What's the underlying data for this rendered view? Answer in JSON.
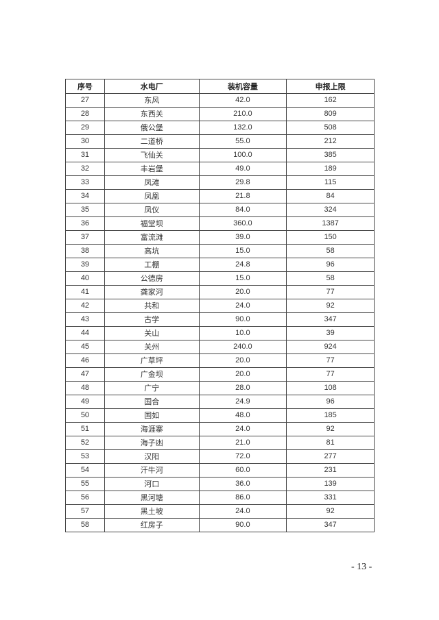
{
  "table": {
    "headers": [
      "序号",
      "水电厂",
      "装机容量",
      "申报上限"
    ],
    "rows": [
      [
        "27",
        "东风",
        "42.0",
        "162"
      ],
      [
        "28",
        "东西关",
        "210.0",
        "809"
      ],
      [
        "29",
        "俄公堡",
        "132.0",
        "508"
      ],
      [
        "30",
        "二道桥",
        "55.0",
        "212"
      ],
      [
        "31",
        "飞仙关",
        "100.0",
        "385"
      ],
      [
        "32",
        "丰岩堡",
        "49.0",
        "189"
      ],
      [
        "33",
        "凤滩",
        "29.8",
        "115"
      ],
      [
        "34",
        "凤凰",
        "21.8",
        "84"
      ],
      [
        "35",
        "凤仪",
        "84.0",
        "324"
      ],
      [
        "36",
        "福堂坝",
        "360.0",
        "1387"
      ],
      [
        "37",
        "富流滩",
        "39.0",
        "150"
      ],
      [
        "38",
        "高坑",
        "15.0",
        "58"
      ],
      [
        "39",
        "工棚",
        "24.8",
        "96"
      ],
      [
        "40",
        "公德房",
        "15.0",
        "58"
      ],
      [
        "41",
        "龚家河",
        "20.0",
        "77"
      ],
      [
        "42",
        "共和",
        "24.0",
        "92"
      ],
      [
        "43",
        "古学",
        "90.0",
        "347"
      ],
      [
        "44",
        "关山",
        "10.0",
        "39"
      ],
      [
        "45",
        "关州",
        "240.0",
        "924"
      ],
      [
        "46",
        "广草坪",
        "20.0",
        "77"
      ],
      [
        "47",
        "广金坝",
        "20.0",
        "77"
      ],
      [
        "48",
        "广宁",
        "28.0",
        "108"
      ],
      [
        "49",
        "国合",
        "24.9",
        "96"
      ],
      [
        "50",
        "国如",
        "48.0",
        "185"
      ],
      [
        "51",
        "海涯寨",
        "24.0",
        "92"
      ],
      [
        "52",
        "海子凼",
        "21.0",
        "81"
      ],
      [
        "53",
        "汉阳",
        "72.0",
        "277"
      ],
      [
        "54",
        "汗牛河",
        "60.0",
        "231"
      ],
      [
        "55",
        "河口",
        "36.0",
        "139"
      ],
      [
        "56",
        "黑河塘",
        "86.0",
        "331"
      ],
      [
        "57",
        "黑土坡",
        "24.0",
        "92"
      ],
      [
        "58",
        "红房子",
        "90.0",
        "347"
      ]
    ]
  },
  "page_number": "- 13 -"
}
